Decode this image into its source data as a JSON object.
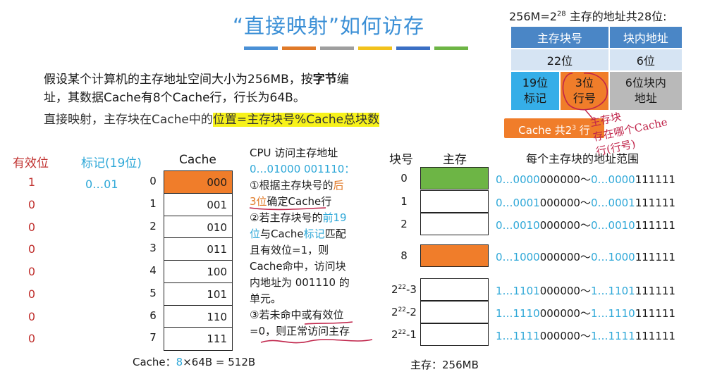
{
  "title": "“直接映射”如何访存",
  "title_bar_colors": [
    "#4a90d6",
    "#e07a28",
    "#9e9e9e",
    "#f2c21c",
    "#3a6fc4",
    "#6db545"
  ],
  "intro": {
    "line1_pre": "假设某个计算机的主存地址空间大小为256MB，按",
    "line1_key": "字节",
    "line1_post": "编",
    "line2": "址，其数据Cache有8个Cache行，行长为64B。",
    "line3_pre": "直接映射，主存块在Cache中的",
    "line3_highlight": "位置=主存块号%Cache总块数"
  },
  "address_format": {
    "title_pre": "256M=2",
    "title_exp": "28",
    "title_post": " 主存的地址共28位:",
    "header_block": "主存块号",
    "header_offset": "块内地址",
    "bits_block": "22位",
    "bits_offset": "6位",
    "tag_l1": "19位",
    "tag_l2": "标记",
    "line_l1": "3位",
    "line_l2": "行号",
    "offset_l1": "6位块内",
    "offset_l2": "地址",
    "cache_lines_pre": "Cache 共2",
    "cache_lines_exp": "3",
    "cache_lines_post": " 行"
  },
  "handwriting": {
    "line1": "主存块",
    "line2": "存在哪个Cache",
    "line3": "行(行号)"
  },
  "cache_table": {
    "valid_header": "有效位",
    "tag_header": "标记(19位)",
    "cache_header": "Cache",
    "valid_bits": [
      "1",
      "0",
      "0",
      "0",
      "0",
      "0",
      "0",
      "0"
    ],
    "tag_first": "0…01",
    "indices": [
      "0",
      "1",
      "2",
      "3",
      "4",
      "5",
      "6",
      "7"
    ],
    "line_numbers": [
      "000",
      "001",
      "010",
      "011",
      "100",
      "101",
      "110",
      "111"
    ],
    "caption_pre": "Cache：",
    "caption_n": "8",
    "caption_post": "×64B = 512B"
  },
  "steps": {
    "l0": "CPU 访问主存地址",
    "l1": "0…01000 001110：",
    "l2a": "①根据主存块号的",
    "l2b": "后",
    "l3a": "3位",
    "l3b": "确定Cache行",
    "l4a": "②若主存块号的",
    "l4b": "前19",
    "l5a": "位",
    "l5b": "与Cache",
    "l5c": "标记",
    "l5d": "匹配",
    "l6": "且有效位=1，则",
    "l7": "Cache命中，访问块",
    "l8": "内地址为 001110 的",
    "l9": "单元。",
    "l10": "③若未命中或有效位",
    "l11": "=0，则正常访问主存"
  },
  "memory": {
    "block_header": "块号",
    "memory_header": "主存",
    "range_header": "每个主存块的地址范围",
    "blocks": [
      {
        "idx": "0",
        "sup": "",
        "range_a1": "0…0000",
        "range_a2": "000000",
        "tilde": "～",
        "range_b1": "0…0000",
        "range_b2": "111111",
        "color": "#6db545"
      },
      {
        "idx": "1",
        "sup": "",
        "range_a1": "0…0001",
        "range_a2": "000000",
        "tilde": "～",
        "range_b1": "0…0001",
        "range_b2": "111111",
        "color": "#ffffff"
      },
      {
        "idx": "2",
        "sup": "",
        "range_a1": "0…0010",
        "range_a2": "000000",
        "tilde": "～",
        "range_b1": "0…0010",
        "range_b2": "111111",
        "color": "#ffffff"
      },
      {
        "idx": "8",
        "sup": "",
        "range_a1": "0…1000",
        "range_a2": "000000",
        "tilde": "～",
        "range_b1": "0…1000",
        "range_b2": "111111",
        "color": "#f07d2a"
      },
      {
        "idx": "2",
        "sup": "22",
        "suffix": "-3",
        "range_a1": "1…1101",
        "range_a2": "000000",
        "tilde": "～",
        "range_b1": "1…1101",
        "range_b2": "111111",
        "color": "#ffffff"
      },
      {
        "idx": "2",
        "sup": "22",
        "suffix": "-2",
        "range_a1": "1…1110",
        "range_a2": "000000",
        "tilde": "～",
        "range_b1": "1…1110",
        "range_b2": "111111",
        "color": "#ffffff"
      },
      {
        "idx": "2",
        "sup": "22",
        "suffix": "-1",
        "range_a1": "1…1111",
        "range_a2": "000000",
        "tilde": "～",
        "range_b1": "1…1111",
        "range_b2": "111111",
        "color": "#ffffff"
      }
    ],
    "caption": "主存：256MB"
  }
}
